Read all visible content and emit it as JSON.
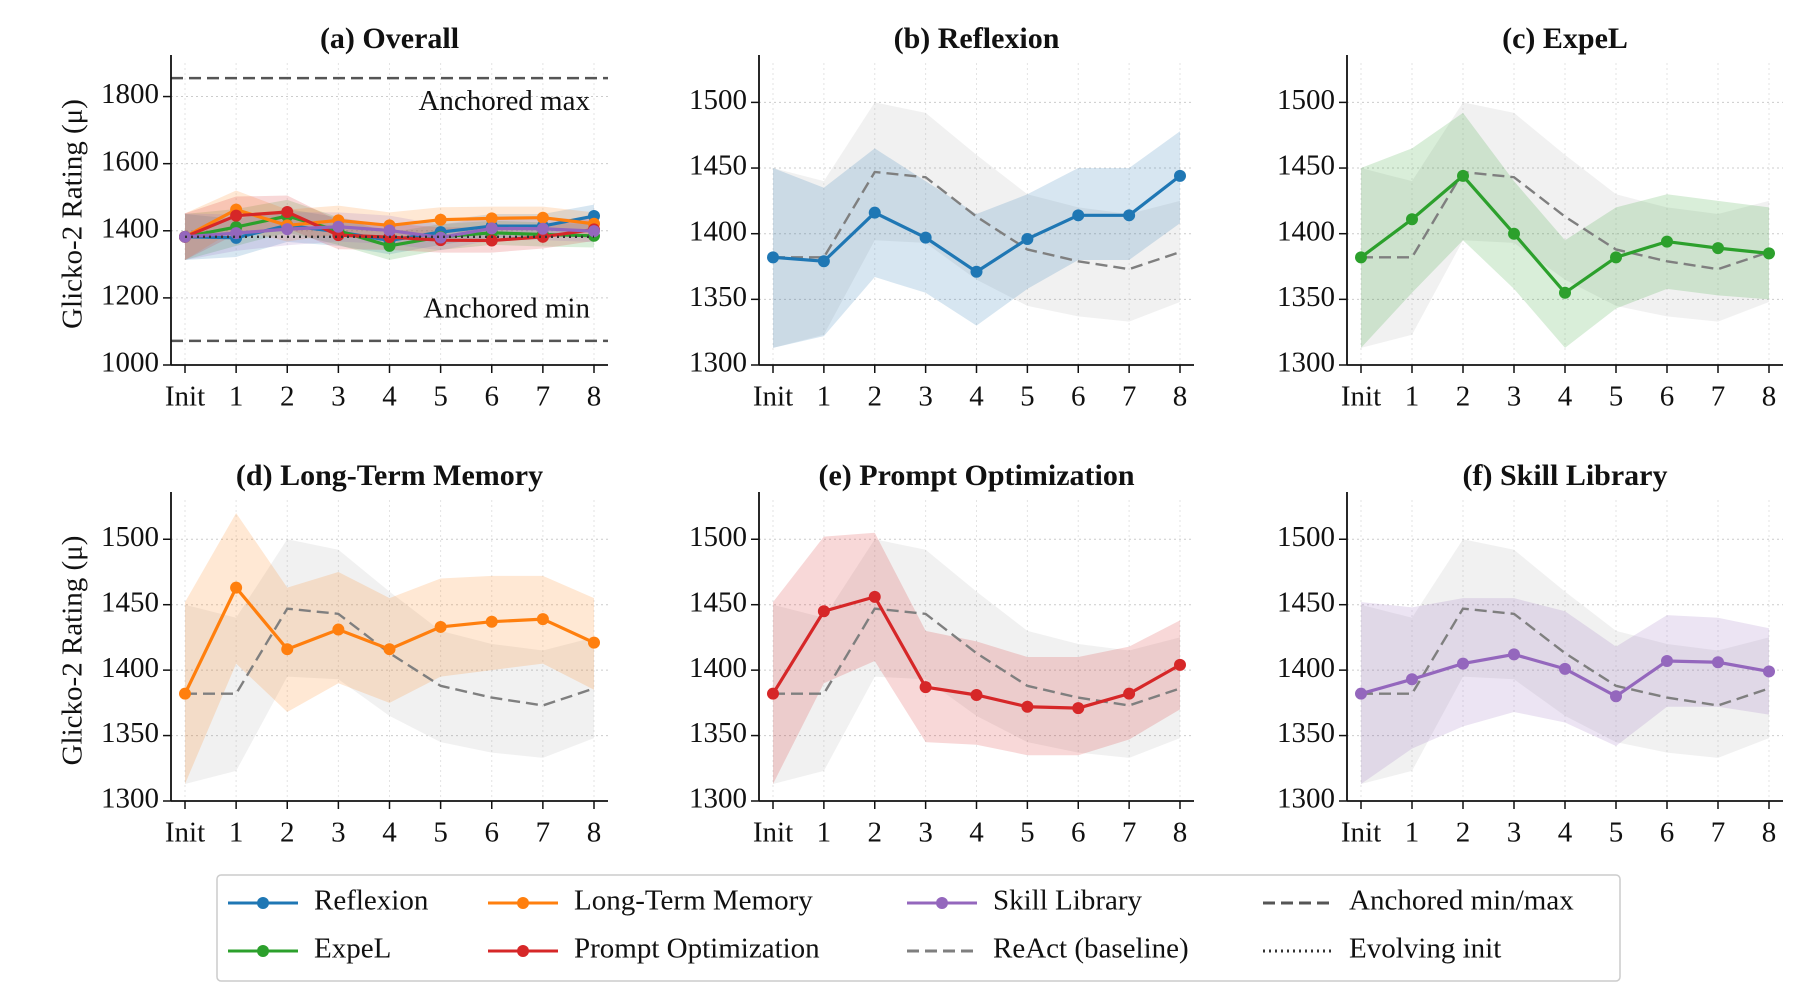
{
  "chart_data": [
    {
      "type": "line",
      "title": "(a) Overall",
      "ylabel": "Glicko-2 Rating (μ)",
      "categories": [
        "Init",
        "1",
        "2",
        "3",
        "4",
        "5",
        "6",
        "7",
        "8"
      ],
      "ylim": [
        1000,
        1900
      ],
      "yticks": [
        1000,
        1200,
        1400,
        1600,
        1800
      ],
      "grid": true,
      "reference_lines": [
        {
          "value": 1855,
          "label": "Anchored max",
          "color": "#555555"
        },
        {
          "value": 1072,
          "label": "Anchored min",
          "color": "#555555"
        }
      ],
      "series": [
        {
          "color": "#1f77b4",
          "style": "solid",
          "markers": true,
          "values": [
            1382,
            1379,
            1416,
            1397,
            1371,
            1396,
            1414,
            1414,
            1444
          ],
          "lower": [
            1313,
            1322,
            1367,
            1355,
            1330,
            1358,
            1380,
            1380,
            1408
          ],
          "upper": [
            1450,
            1435,
            1465,
            1440,
            1415,
            1430,
            1450,
            1450,
            1478
          ]
        },
        {
          "color": "#2ca02c",
          "style": "solid",
          "markers": true,
          "values": [
            1382,
            1411,
            1444,
            1400,
            1355,
            1382,
            1394,
            1389,
            1385
          ],
          "lower": [
            1313,
            1355,
            1395,
            1358,
            1313,
            1343,
            1358,
            1353,
            1350
          ],
          "upper": [
            1450,
            1465,
            1492,
            1440,
            1395,
            1420,
            1430,
            1425,
            1420
          ]
        },
        {
          "color": "#ff7f0e",
          "style": "solid",
          "markers": true,
          "values": [
            1382,
            1463,
            1416,
            1431,
            1416,
            1433,
            1437,
            1439,
            1421
          ],
          "lower": [
            1313,
            1405,
            1368,
            1390,
            1375,
            1395,
            1400,
            1405,
            1385
          ],
          "upper": [
            1452,
            1520,
            1463,
            1475,
            1455,
            1470,
            1472,
            1472,
            1455
          ]
        },
        {
          "color": "#d62728",
          "style": "solid",
          "markers": true,
          "values": [
            1382,
            1445,
            1456,
            1387,
            1381,
            1372,
            1371,
            1382,
            1404
          ],
          "lower": [
            1313,
            1390,
            1407,
            1345,
            1343,
            1335,
            1335,
            1347,
            1370
          ],
          "upper": [
            1452,
            1502,
            1505,
            1430,
            1422,
            1410,
            1410,
            1418,
            1438
          ]
        },
        {
          "color": "#9467bd",
          "style": "solid",
          "markers": true,
          "values": [
            1382,
            1393,
            1405,
            1412,
            1401,
            1380,
            1407,
            1406,
            1399
          ],
          "lower": [
            1313,
            1340,
            1357,
            1368,
            1360,
            1342,
            1372,
            1372,
            1366
          ],
          "upper": [
            1452,
            1448,
            1455,
            1455,
            1445,
            1418,
            1442,
            1440,
            1432
          ]
        },
        {
          "color": "#333333",
          "style": "dotted",
          "markers": false,
          "values": [
            1382,
            1382,
            1382,
            1382,
            1382,
            1382,
            1382,
            1382,
            1382
          ]
        }
      ]
    },
    {
      "type": "line",
      "title": "(b) Reflexion",
      "categories": [
        "Init",
        "1",
        "2",
        "3",
        "4",
        "5",
        "6",
        "7",
        "8"
      ],
      "ylim": [
        1300,
        1530
      ],
      "yticks": [
        1300,
        1350,
        1400,
        1450,
        1500
      ],
      "grid": true,
      "series": [
        {
          "color": "#7f7f7f",
          "style": "dashed",
          "markers": false,
          "values": [
            1382,
            1382,
            1447,
            1443,
            1413,
            1388,
            1379,
            1373,
            1386
          ],
          "lower": [
            1313,
            1323,
            1395,
            1393,
            1365,
            1345,
            1337,
            1333,
            1348
          ],
          "upper": [
            1450,
            1440,
            1500,
            1492,
            1460,
            1430,
            1420,
            1415,
            1425
          ]
        },
        {
          "color": "#1f77b4",
          "style": "solid",
          "markers": true,
          "values": [
            1382,
            1379,
            1416,
            1397,
            1371,
            1396,
            1414,
            1414,
            1444
          ],
          "lower": [
            1313,
            1322,
            1367,
            1355,
            1330,
            1358,
            1380,
            1380,
            1408
          ],
          "upper": [
            1450,
            1435,
            1465,
            1440,
            1415,
            1430,
            1450,
            1450,
            1478
          ]
        }
      ]
    },
    {
      "type": "line",
      "title": "(c) ExpeL",
      "categories": [
        "Init",
        "1",
        "2",
        "3",
        "4",
        "5",
        "6",
        "7",
        "8"
      ],
      "ylim": [
        1300,
        1530
      ],
      "yticks": [
        1300,
        1350,
        1400,
        1450,
        1500
      ],
      "grid": true,
      "series": [
        {
          "color": "#7f7f7f",
          "style": "dashed",
          "markers": false,
          "values": [
            1382,
            1382,
            1447,
            1443,
            1413,
            1388,
            1379,
            1373,
            1386
          ],
          "lower": [
            1313,
            1323,
            1395,
            1393,
            1365,
            1345,
            1337,
            1333,
            1348
          ],
          "upper": [
            1450,
            1440,
            1500,
            1492,
            1460,
            1430,
            1420,
            1415,
            1425
          ]
        },
        {
          "color": "#2ca02c",
          "style": "solid",
          "markers": true,
          "values": [
            1382,
            1411,
            1444,
            1400,
            1355,
            1382,
            1394,
            1389,
            1385
          ],
          "lower": [
            1313,
            1355,
            1395,
            1358,
            1313,
            1343,
            1358,
            1353,
            1350
          ],
          "upper": [
            1450,
            1465,
            1492,
            1440,
            1395,
            1420,
            1430,
            1425,
            1420
          ]
        }
      ]
    },
    {
      "type": "line",
      "title": "(d) Long-Term Memory",
      "ylabel": "Glicko-2 Rating (μ)",
      "categories": [
        "Init",
        "1",
        "2",
        "3",
        "4",
        "5",
        "6",
        "7",
        "8"
      ],
      "ylim": [
        1300,
        1530
      ],
      "yticks": [
        1300,
        1350,
        1400,
        1450,
        1500
      ],
      "grid": true,
      "series": [
        {
          "color": "#7f7f7f",
          "style": "dashed",
          "markers": false,
          "values": [
            1382,
            1382,
            1447,
            1443,
            1413,
            1388,
            1379,
            1373,
            1386
          ],
          "lower": [
            1313,
            1323,
            1395,
            1393,
            1365,
            1345,
            1337,
            1333,
            1348
          ],
          "upper": [
            1450,
            1440,
            1500,
            1492,
            1460,
            1430,
            1420,
            1415,
            1425
          ]
        },
        {
          "color": "#ff7f0e",
          "style": "solid",
          "markers": true,
          "values": [
            1382,
            1463,
            1416,
            1431,
            1416,
            1433,
            1437,
            1439,
            1421
          ],
          "lower": [
            1313,
            1405,
            1368,
            1390,
            1375,
            1395,
            1400,
            1405,
            1385
          ],
          "upper": [
            1452,
            1520,
            1463,
            1475,
            1455,
            1470,
            1472,
            1472,
            1455
          ]
        }
      ]
    },
    {
      "type": "line",
      "title": "(e) Prompt Optimization",
      "categories": [
        "Init",
        "1",
        "2",
        "3",
        "4",
        "5",
        "6",
        "7",
        "8"
      ],
      "ylim": [
        1300,
        1530
      ],
      "yticks": [
        1300,
        1350,
        1400,
        1450,
        1500
      ],
      "grid": true,
      "series": [
        {
          "color": "#7f7f7f",
          "style": "dashed",
          "markers": false,
          "values": [
            1382,
            1382,
            1447,
            1443,
            1413,
            1388,
            1379,
            1373,
            1386
          ],
          "lower": [
            1313,
            1323,
            1395,
            1393,
            1365,
            1345,
            1337,
            1333,
            1348
          ],
          "upper": [
            1450,
            1440,
            1500,
            1492,
            1460,
            1430,
            1420,
            1415,
            1425
          ]
        },
        {
          "color": "#d62728",
          "style": "solid",
          "markers": true,
          "values": [
            1382,
            1445,
            1456,
            1387,
            1381,
            1372,
            1371,
            1382,
            1404
          ],
          "lower": [
            1313,
            1390,
            1407,
            1345,
            1343,
            1335,
            1335,
            1347,
            1370
          ],
          "upper": [
            1452,
            1502,
            1505,
            1430,
            1422,
            1410,
            1410,
            1418,
            1438
          ]
        }
      ]
    },
    {
      "type": "line",
      "title": "(f) Skill Library",
      "categories": [
        "Init",
        "1",
        "2",
        "3",
        "4",
        "5",
        "6",
        "7",
        "8"
      ],
      "ylim": [
        1300,
        1530
      ],
      "yticks": [
        1300,
        1350,
        1400,
        1450,
        1500
      ],
      "grid": true,
      "series": [
        {
          "color": "#7f7f7f",
          "style": "dashed",
          "markers": false,
          "values": [
            1382,
            1382,
            1447,
            1443,
            1413,
            1388,
            1379,
            1373,
            1386
          ],
          "lower": [
            1313,
            1323,
            1395,
            1393,
            1365,
            1345,
            1337,
            1333,
            1348
          ],
          "upper": [
            1450,
            1440,
            1500,
            1492,
            1460,
            1430,
            1420,
            1415,
            1425
          ]
        },
        {
          "color": "#9467bd",
          "style": "solid",
          "markers": true,
          "values": [
            1382,
            1393,
            1405,
            1412,
            1401,
            1380,
            1407,
            1406,
            1399
          ],
          "lower": [
            1313,
            1340,
            1357,
            1368,
            1360,
            1342,
            1372,
            1372,
            1366
          ],
          "upper": [
            1452,
            1448,
            1455,
            1455,
            1445,
            1418,
            1442,
            1440,
            1432
          ]
        }
      ]
    }
  ],
  "legend": [
    {
      "name": "Reflexion",
      "color": "#1f77b4",
      "style": "solid",
      "marker": true
    },
    {
      "name": "ExpeL",
      "color": "#2ca02c",
      "style": "solid",
      "marker": true
    },
    {
      "name": "Long-Term Memory",
      "color": "#ff7f0e",
      "style": "solid",
      "marker": true
    },
    {
      "name": "Prompt Optimization",
      "color": "#d62728",
      "style": "solid",
      "marker": true
    },
    {
      "name": "Skill Library",
      "color": "#9467bd",
      "style": "solid",
      "marker": true
    },
    {
      "name": "ReAct (baseline)",
      "color": "#7f7f7f",
      "style": "dashed",
      "marker": false
    },
    {
      "name": "Anchored min/max",
      "color": "#555555",
      "style": "dashed",
      "marker": false
    },
    {
      "name": "Evolving init",
      "color": "#333333",
      "style": "dotted",
      "marker": false
    }
  ]
}
